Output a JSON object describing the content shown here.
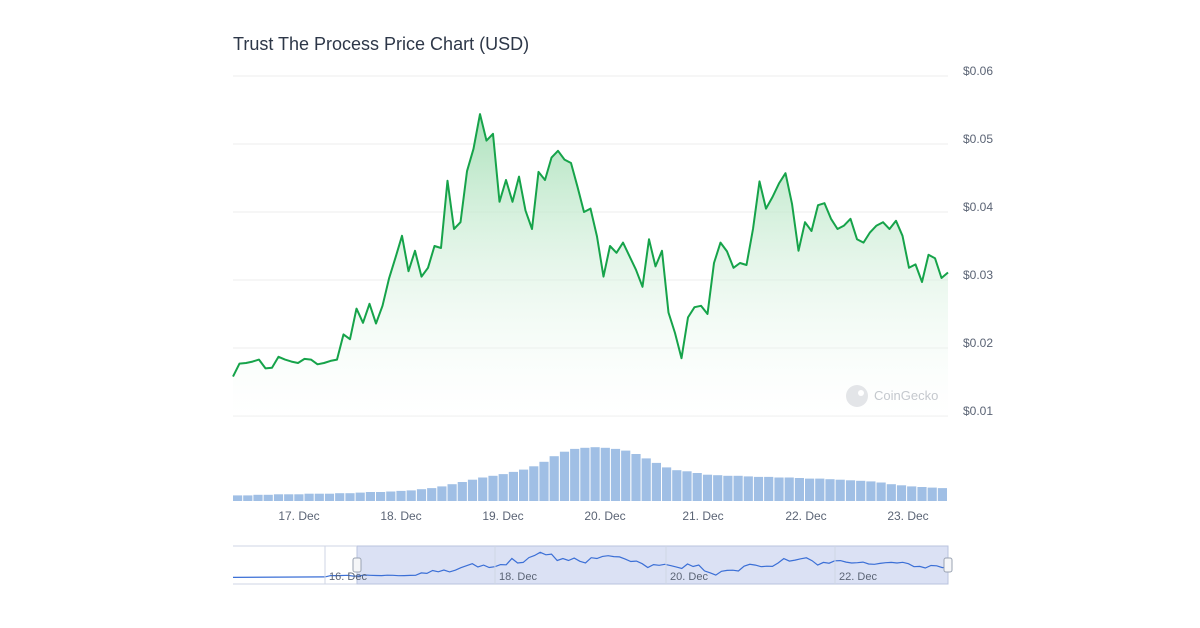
{
  "chart_data": {
    "type": "line",
    "title": "Trust The Process Price Chart (USD)",
    "currency": "USD",
    "ylim": [
      0.01,
      0.06
    ],
    "yticks": [
      "$0.06",
      "$0.05",
      "$0.04",
      "$0.03",
      "$0.02",
      "$0.01"
    ],
    "xticks": [
      "17. Dec",
      "18. Dec",
      "19. Dec",
      "20. Dec",
      "21. Dec",
      "22. Dec",
      "23. Dec"
    ],
    "x_range": [
      "16. Dec",
      "23. Dec"
    ],
    "series": [
      {
        "values": [
          0.0158,
          0.0177,
          0.0178,
          0.018,
          0.0183,
          0.017,
          0.0171,
          0.0187,
          0.0183,
          0.018,
          0.0178,
          0.0184,
          0.0183,
          0.0176,
          0.0178,
          0.0181,
          0.0183,
          0.022,
          0.0213,
          0.0258,
          0.0237,
          0.0265,
          0.0236,
          0.0262,
          0.0302,
          0.0333,
          0.0365,
          0.0313,
          0.0343,
          0.0305,
          0.0318,
          0.035,
          0.0347,
          0.0446,
          0.0375,
          0.0385,
          0.046,
          0.0493,
          0.0544,
          0.0505,
          0.0515,
          0.0415,
          0.0447,
          0.0415,
          0.0452,
          0.0402,
          0.0375,
          0.0459,
          0.0447,
          0.048,
          0.049,
          0.0477,
          0.0472,
          0.0437,
          0.04,
          0.0405,
          0.0364,
          0.0305,
          0.035,
          0.034,
          0.0355,
          0.0335,
          0.0315,
          0.029,
          0.036,
          0.032,
          0.0343,
          0.0252,
          0.0222,
          0.0185,
          0.0245,
          0.026,
          0.0262,
          0.025,
          0.0325,
          0.0355,
          0.0342,
          0.0318,
          0.0325,
          0.0322,
          0.0375,
          0.0445,
          0.0405,
          0.0422,
          0.0442,
          0.0457,
          0.0412,
          0.0343,
          0.0385,
          0.0372,
          0.041,
          0.0413,
          0.039,
          0.0375,
          0.038,
          0.039,
          0.036,
          0.0355,
          0.037,
          0.038,
          0.0385,
          0.0375,
          0.0387,
          0.0365,
          0.0318,
          0.0323,
          0.0297,
          0.0337,
          0.0332,
          0.0303,
          0.0311
        ]
      }
    ],
    "volume": [
      0.1,
      0.1,
      0.11,
      0.11,
      0.12,
      0.12,
      0.12,
      0.13,
      0.13,
      0.13,
      0.14,
      0.14,
      0.15,
      0.16,
      0.16,
      0.17,
      0.18,
      0.19,
      0.21,
      0.23,
      0.26,
      0.3,
      0.34,
      0.38,
      0.42,
      0.45,
      0.48,
      0.52,
      0.56,
      0.62,
      0.7,
      0.8,
      0.88,
      0.93,
      0.95,
      0.96,
      0.95,
      0.93,
      0.9,
      0.84,
      0.76,
      0.68,
      0.6,
      0.55,
      0.53,
      0.5,
      0.47,
      0.46,
      0.45,
      0.45,
      0.44,
      0.43,
      0.43,
      0.42,
      0.42,
      0.41,
      0.4,
      0.4,
      0.39,
      0.38,
      0.37,
      0.36,
      0.35,
      0.33,
      0.3,
      0.28,
      0.26,
      0.25,
      0.24,
      0.23
    ],
    "navigator": {
      "xticks": [
        "16. Dec",
        "18. Dec",
        "20. Dec",
        "22. Dec"
      ]
    }
  },
  "watermark": "CoinGecko",
  "colors": {
    "line": "#16a34a",
    "fill_top": "#a8e0b8",
    "volume": "#8fb4e0",
    "navigator_bg": "#dbe1f4",
    "navigator_line": "#3b6fd6",
    "grid": "#ececec",
    "tick_text": "#5b6475"
  }
}
